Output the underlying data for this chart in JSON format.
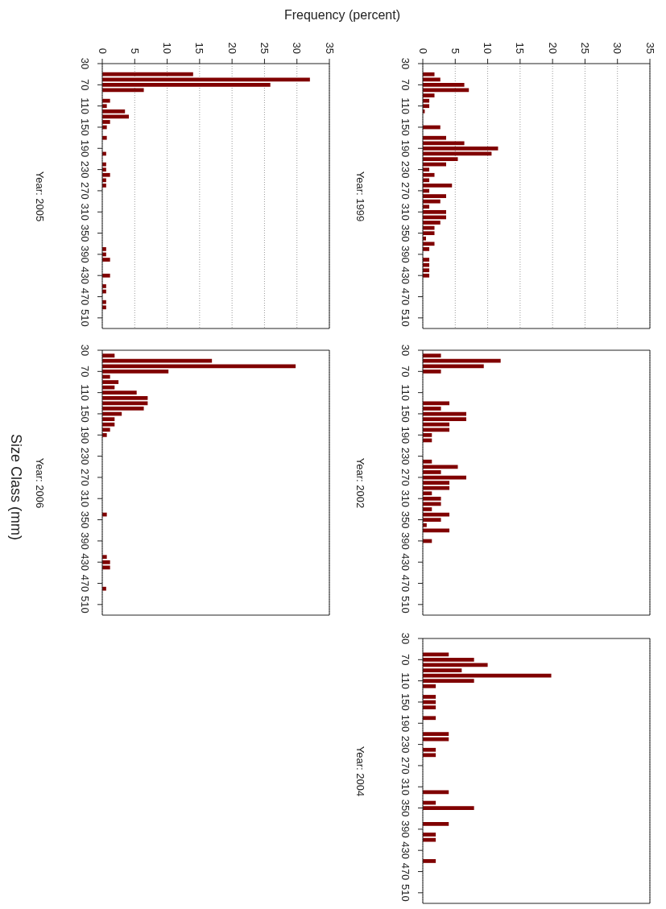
{
  "chart_data": [
    {
      "type": "histogram",
      "orientation": "horizontal",
      "ylabel": "Year: 1999",
      "xlabel": "Frequency (percent)",
      "color": "#800000",
      "bins": [
        35,
        45,
        55,
        65,
        75,
        85,
        95,
        105,
        115,
        125,
        135,
        145,
        155,
        165,
        175,
        185,
        195,
        205,
        215,
        225,
        235,
        245,
        255,
        265,
        275,
        285,
        295,
        305,
        315,
        325,
        335,
        345,
        355,
        365,
        375,
        385,
        395,
        405,
        415,
        425,
        435,
        445,
        455,
        465,
        475,
        485,
        495,
        505
      ],
      "values": [
        0,
        1.8,
        2.7,
        6.4,
        7.1,
        1.8,
        1.0,
        1.0,
        0.3,
        0,
        0,
        2.7,
        0,
        3.6,
        6.4,
        11.6,
        10.6,
        5.4,
        3.6,
        1.0,
        1.8,
        1.0,
        4.5,
        1.0,
        3.6,
        2.7,
        1.0,
        3.6,
        3.6,
        2.7,
        1.8,
        1.8,
        0.5,
        1.8,
        1.0,
        0,
        1.0,
        1.0,
        1.0,
        1.0,
        0,
        0,
        0,
        0,
        0,
        0,
        0
      ],
      "ylim": [
        530,
        30
      ],
      "yticks": [
        30,
        70,
        110,
        150,
        190,
        230,
        270,
        310,
        350,
        390,
        430,
        470,
        510
      ],
      "xlim": [
        0,
        35
      ],
      "xticks": [
        0,
        5,
        10,
        15,
        20,
        25,
        30,
        35
      ],
      "grid": "x"
    },
    {
      "type": "histogram",
      "orientation": "horizontal",
      "ylabel": "Year: 2002",
      "color": "#800000",
      "bins": [
        35,
        45,
        55,
        65,
        75,
        85,
        95,
        105,
        115,
        125,
        135,
        145,
        155,
        165,
        175,
        185,
        195,
        205,
        215,
        225,
        235,
        245,
        255,
        265,
        275,
        285,
        295,
        305,
        315,
        325,
        335,
        345,
        355,
        365,
        375,
        385,
        395,
        405,
        415,
        425,
        435,
        445,
        455,
        465,
        475,
        485,
        495,
        505
      ],
      "values": [
        2.8,
        12.0,
        9.4,
        2.8,
        0,
        0,
        0,
        0,
        0,
        4.1,
        2.8,
        6.7,
        6.7,
        4.1,
        4.1,
        1.4,
        1.4,
        0,
        0,
        0,
        1.4,
        5.4,
        2.8,
        6.7,
        4.1,
        4.1,
        1.4,
        2.8,
        2.8,
        1.4,
        4.1,
        2.8,
        0.6,
        4.1,
        0,
        1.4,
        0,
        0,
        0,
        0,
        0,
        0,
        0,
        0,
        0,
        0,
        0
      ],
      "ylim": [
        530,
        30
      ],
      "yticks": [
        30,
        70,
        110,
        150,
        190,
        230,
        270,
        310,
        350,
        390,
        430,
        470,
        510
      ],
      "xlim": [
        0,
        35
      ],
      "xticks": [
        0,
        5,
        10,
        15,
        20,
        25,
        30,
        35
      ],
      "grid": "x",
      "tick_labels": "y"
    },
    {
      "type": "histogram",
      "orientation": "horizontal",
      "ylabel": "Year: 2004",
      "color": "#800000",
      "bins": [
        35,
        45,
        55,
        65,
        75,
        85,
        95,
        105,
        115,
        125,
        135,
        145,
        155,
        165,
        175,
        185,
        195,
        205,
        215,
        225,
        235,
        245,
        255,
        265,
        275,
        285,
        295,
        305,
        315,
        325,
        335,
        345,
        355,
        365,
        375,
        385,
        395,
        405,
        415,
        425,
        435,
        445,
        455,
        465,
        475,
        485,
        495,
        505
      ],
      "values": [
        0,
        0,
        4.0,
        7.9,
        10.0,
        6.0,
        19.8,
        7.9,
        2.0,
        0,
        2.0,
        2.0,
        2.0,
        0,
        2.0,
        0,
        0,
        4.0,
        4.0,
        0,
        2.0,
        2.0,
        0,
        0,
        0,
        0,
        0,
        0,
        4.0,
        0,
        2.0,
        7.9,
        0,
        0,
        4.0,
        0,
        2.0,
        2.0,
        0,
        0,
        0,
        2.0,
        0,
        0,
        0,
        0,
        0
      ],
      "ylim": [
        530,
        30
      ],
      "yticks": [
        30,
        70,
        110,
        150,
        190,
        230,
        270,
        310,
        350,
        390,
        430,
        470,
        510
      ],
      "xlim": [
        0,
        35
      ],
      "xticks": [
        0,
        5,
        10,
        15,
        20,
        25,
        30,
        35
      ],
      "grid": "x",
      "tick_labels": "y"
    },
    {
      "type": "histogram",
      "orientation": "horizontal",
      "ylabel": "Year: 2005",
      "color": "#800000",
      "bins": [
        35,
        45,
        55,
        65,
        75,
        85,
        95,
        105,
        115,
        125,
        135,
        145,
        155,
        165,
        175,
        185,
        195,
        205,
        215,
        225,
        235,
        245,
        255,
        265,
        275,
        285,
        295,
        305,
        315,
        325,
        335,
        345,
        355,
        365,
        375,
        385,
        395,
        405,
        415,
        425,
        435,
        445,
        455,
        465,
        475,
        485,
        495,
        505
      ],
      "values": [
        0,
        14.0,
        32.0,
        25.9,
        6.4,
        0,
        1.2,
        0.7,
        3.5,
        4.1,
        1.2,
        0.7,
        0,
        0.7,
        0,
        0,
        0.6,
        0,
        0.6,
        0.6,
        1.2,
        0.6,
        0.6,
        0,
        0,
        0,
        0,
        0,
        0,
        0,
        0,
        0,
        0,
        0,
        0.6,
        0.6,
        1.2,
        0,
        0,
        1.2,
        0,
        0.6,
        0.6,
        0,
        0.6,
        0.6,
        0
      ],
      "ylim": [
        530,
        30
      ],
      "yticks": [
        30,
        70,
        110,
        150,
        190,
        230,
        270,
        310,
        350,
        390,
        430,
        470,
        510
      ],
      "xlim": [
        0,
        35
      ],
      "xticks": [
        0,
        5,
        10,
        15,
        20,
        25,
        30,
        35
      ],
      "grid": "x"
    },
    {
      "type": "histogram",
      "orientation": "horizontal",
      "ylabel": "Year: 2006",
      "annotations": [
        "Size Class (mm)"
      ],
      "color": "#800000",
      "bins": [
        35,
        45,
        55,
        65,
        75,
        85,
        95,
        105,
        115,
        125,
        135,
        145,
        155,
        165,
        175,
        185,
        195,
        205,
        215,
        225,
        235,
        245,
        255,
        265,
        275,
        285,
        295,
        305,
        315,
        325,
        335,
        345,
        355,
        365,
        375,
        385,
        395,
        405,
        415,
        425,
        435,
        445,
        455,
        465,
        475,
        485,
        495,
        505
      ],
      "values": [
        1.9,
        16.9,
        29.8,
        10.2,
        1.2,
        2.5,
        1.9,
        5.3,
        7.0,
        7.0,
        6.4,
        3.0,
        1.9,
        1.9,
        1.2,
        0.7,
        0,
        0,
        0,
        0,
        0,
        0,
        0,
        0,
        0,
        0,
        0,
        0,
        0,
        0,
        0.7,
        0,
        0,
        0,
        0,
        0,
        0,
        0,
        0.7,
        1.2,
        1.2,
        0,
        0,
        0,
        0.6,
        0,
        0
      ],
      "ylim": [
        530,
        30
      ],
      "yticks": [
        30,
        70,
        110,
        150,
        190,
        230,
        270,
        310,
        350,
        390,
        430,
        470,
        510
      ],
      "xlim": [
        0,
        35
      ],
      "xticks": [
        0,
        5,
        10,
        15,
        20,
        25,
        30,
        35
      ],
      "grid": "x",
      "tick_labels": "y"
    }
  ]
}
